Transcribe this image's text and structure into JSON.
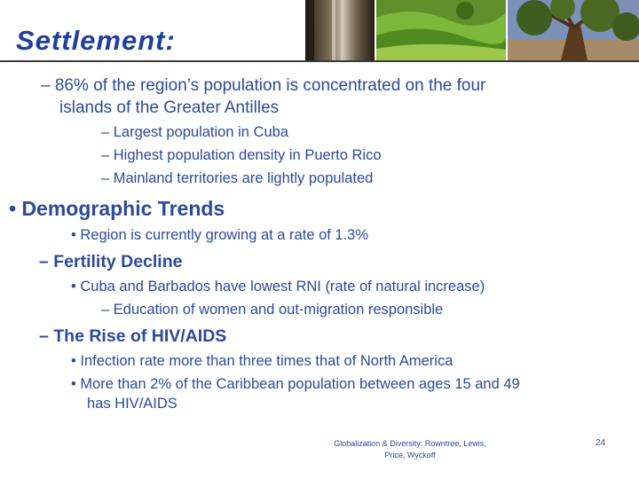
{
  "slide": {
    "title": "Settlement:",
    "lines": [
      "– 86% of the region’s population is concentrated on the four",
      "islands of the Greater Antilles",
      "– Largest population in Cuba",
      "– Highest population density in Puerto Rico",
      "– Mainland territories are lightly populated",
      "• Demographic Trends",
      "• Region is currently growing at a rate of 1.3%",
      "– Fertility Decline",
      "• Cuba and Barbados have lowest RNI (rate of natural increase)",
      "– Education of women and out-migration responsible",
      "– The Rise of HIV/AIDS",
      "• Infection rate more than three times that of North America",
      "• More than 2% of the Caribbean population between ages 15 and 49",
      "has HIV/AIDS"
    ],
    "footer": {
      "line1": "Globalization & Diversity: Rowntree, Lewis,",
      "line2": "Price, Wyckoff",
      "page": "24"
    }
  },
  "colors": {
    "title": "#1f3f9e",
    "text": "#2b4a9b",
    "rule": "#3a3a3a"
  },
  "images": [
    "waterfall-photo",
    "green-hills-photo",
    "tree-photo"
  ]
}
